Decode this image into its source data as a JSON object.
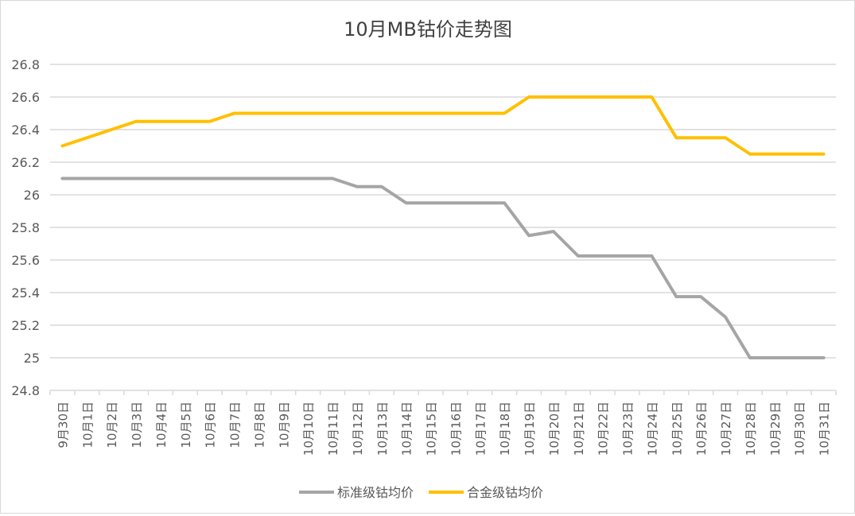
{
  "chart_data": {
    "type": "line",
    "title": "10月MB钴价走势图",
    "xlabel": "",
    "ylabel": "",
    "ylim": [
      24.8,
      26.8
    ],
    "ytick_step": 0.2,
    "yticks": [
      "24.8",
      "25",
      "25.2",
      "25.4",
      "25.6",
      "25.8",
      "26",
      "26.2",
      "26.4",
      "26.6",
      "26.8"
    ],
    "grid": true,
    "legend_position": "bottom",
    "categories": [
      "9月30日",
      "10月1日",
      "10月2日",
      "10月3日",
      "10月4日",
      "10月5日",
      "10月6日",
      "10月7日",
      "10月8日",
      "10月9日",
      "10月10日",
      "10月11日",
      "10月12日",
      "10月13日",
      "10月14日",
      "10月15日",
      "10月16日",
      "10月17日",
      "10月18日",
      "10月19日",
      "10月20日",
      "10月21日",
      "10月22日",
      "10月23日",
      "10月24日",
      "10月25日",
      "10月26日",
      "10月27日",
      "10月28日",
      "10月29日",
      "10月30日",
      "10月31日"
    ],
    "series": [
      {
        "name": "标准级钴均价",
        "color": "#a5a5a5",
        "values": [
          26.1,
          26.1,
          26.1,
          26.1,
          26.1,
          26.1,
          26.1,
          26.1,
          26.1,
          26.1,
          26.1,
          26.1,
          26.05,
          26.05,
          25.95,
          25.95,
          25.95,
          25.95,
          25.95,
          25.75,
          25.775,
          25.625,
          25.625,
          25.625,
          25.625,
          25.375,
          25.375,
          25.25,
          25.0,
          25.0,
          25.0,
          25.0
        ]
      },
      {
        "name": "合金级钴均价",
        "color": "#ffc000",
        "values": [
          26.3,
          26.35,
          26.4,
          26.45,
          26.45,
          26.45,
          26.45,
          26.5,
          26.5,
          26.5,
          26.5,
          26.5,
          26.5,
          26.5,
          26.5,
          26.5,
          26.5,
          26.5,
          26.5,
          26.6,
          26.6,
          26.6,
          26.6,
          26.6,
          26.6,
          26.35,
          26.35,
          26.35,
          26.25,
          26.25,
          26.25,
          26.25
        ]
      }
    ]
  }
}
